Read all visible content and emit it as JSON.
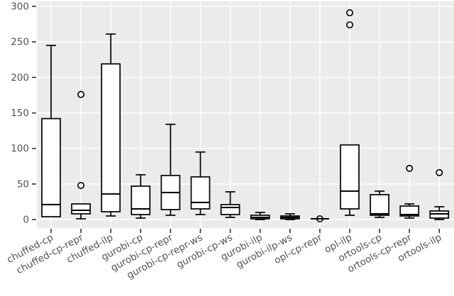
{
  "chart_data": {
    "type": "boxplot",
    "title": "",
    "xlabel": "",
    "ylabel": "",
    "ylim": [
      0,
      300
    ],
    "yticks": [
      0,
      50,
      100,
      150,
      200,
      250,
      300
    ],
    "grid": "on",
    "legend": "none",
    "panel_bg": "#ebebeb",
    "grid_color": "#ffffff",
    "box_stroke": "#000000",
    "box_fill": "#ffffff",
    "tick_label_color": "#525252",
    "tick_mark_color": "#333333",
    "x_label_rotation_deg": -28,
    "categories": [
      "chuffed-cp",
      "chuffed-cp-repr",
      "chuffed-ilp",
      "gurobi-cp",
      "gurobi-cp-repr",
      "gurobi-cp-repr-ws",
      "gurobi-cp-ws",
      "gurobi-ilp",
      "gurobi-ilp-ws",
      "opl-cp-repr",
      "opl-ilp",
      "ortools-cp",
      "ortools-cp-repr",
      "ortools-ilp"
    ],
    "series": [
      {
        "name": "chuffed-cp",
        "whisker_low": 4,
        "q1": 4,
        "median": 21,
        "q3": 142,
        "whisker_high": 245,
        "outliers": []
      },
      {
        "name": "chuffed-cp-repr",
        "whisker_low": 1,
        "q1": 8,
        "median": 13,
        "q3": 22,
        "whisker_high": 22,
        "outliers": [
          48,
          176
        ]
      },
      {
        "name": "chuffed-ilp",
        "whisker_low": 5,
        "q1": 11,
        "median": 36,
        "q3": 219,
        "whisker_high": 261,
        "outliers": []
      },
      {
        "name": "gurobi-cp",
        "whisker_low": 2,
        "q1": 7,
        "median": 15,
        "q3": 47,
        "whisker_high": 63,
        "outliers": []
      },
      {
        "name": "gurobi-cp-repr",
        "whisker_low": 6,
        "q1": 14,
        "median": 38,
        "q3": 62,
        "whisker_high": 134,
        "outliers": []
      },
      {
        "name": "gurobi-cp-repr-ws",
        "whisker_low": 7,
        "q1": 15,
        "median": 24,
        "q3": 60,
        "whisker_high": 95,
        "outliers": []
      },
      {
        "name": "gurobi-cp-ws",
        "whisker_low": 3,
        "q1": 7,
        "median": 17,
        "q3": 21,
        "whisker_high": 39,
        "outliers": []
      },
      {
        "name": "gurobi-ilp",
        "whisker_low": 0,
        "q1": 1,
        "median": 3,
        "q3": 6,
        "whisker_high": 10,
        "outliers": []
      },
      {
        "name": "gurobi-ilp-ws",
        "whisker_low": 0,
        "q1": 1,
        "median": 3,
        "q3": 5,
        "whisker_high": 8,
        "outliers": []
      },
      {
        "name": "opl-cp-repr",
        "whisker_low": 1,
        "q1": 1,
        "median": 1,
        "q3": 1,
        "whisker_high": 1,
        "outliers": [
          1
        ]
      },
      {
        "name": "opl-ilp",
        "whisker_low": 6,
        "q1": 15,
        "median": 40,
        "q3": 105,
        "whisker_high": 105,
        "outliers": [
          274,
          291
        ]
      },
      {
        "name": "ortools-cp",
        "whisker_low": 3,
        "q1": 6,
        "median": 8,
        "q3": 35,
        "whisker_high": 40,
        "outliers": []
      },
      {
        "name": "ortools-cp-repr",
        "whisker_low": 2,
        "q1": 5,
        "median": 7,
        "q3": 19,
        "whisker_high": 22,
        "outliers": [
          72
        ]
      },
      {
        "name": "ortools-ilp",
        "whisker_low": 0,
        "q1": 2,
        "median": 8,
        "q3": 12,
        "whisker_high": 18,
        "outliers": [
          66
        ]
      }
    ]
  }
}
